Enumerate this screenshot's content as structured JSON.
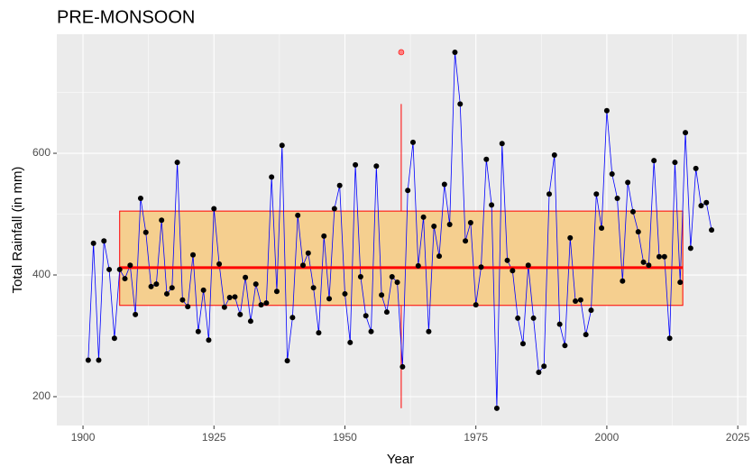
{
  "chart_data": {
    "type": "line",
    "title": "PRE-MONSOON",
    "x_label": "Year",
    "y_label": "Total Rainfall (in mm)",
    "x": [
      1901,
      1902,
      1903,
      1904,
      1905,
      1906,
      1907,
      1908,
      1909,
      1910,
      1911,
      1912,
      1913,
      1914,
      1915,
      1916,
      1917,
      1918,
      1919,
      1920,
      1921,
      1922,
      1923,
      1924,
      1925,
      1926,
      1927,
      1928,
      1929,
      1930,
      1931,
      1932,
      1933,
      1934,
      1935,
      1936,
      1937,
      1938,
      1939,
      1940,
      1941,
      1942,
      1943,
      1944,
      1945,
      1946,
      1947,
      1948,
      1949,
      1950,
      1951,
      1952,
      1953,
      1954,
      1955,
      1956,
      1957,
      1958,
      1959,
      1960,
      1961,
      1962,
      1963,
      1964,
      1965,
      1966,
      1967,
      1968,
      1969,
      1970,
      1971,
      1972,
      1973,
      1974,
      1975,
      1976,
      1977,
      1978,
      1979,
      1980,
      1981,
      1982,
      1983,
      1984,
      1985,
      1986,
      1987,
      1988,
      1989,
      1990,
      1991,
      1992,
      1993,
      1994,
      1995,
      1996,
      1997,
      1998,
      1999,
      2000,
      2001,
      2002,
      2003,
      2004,
      2005,
      2006,
      2007,
      2008,
      2009,
      2010,
      2011,
      2012,
      2013,
      2014,
      2015,
      2016,
      2017,
      2018,
      2019,
      2020
    ],
    "values": [
      260,
      452,
      260,
      456,
      409,
      296,
      409,
      394,
      416,
      335,
      526,
      470,
      381,
      385,
      490,
      369,
      379,
      585,
      359,
      348,
      433,
      307,
      375,
      293,
      509,
      418,
      347,
      363,
      364,
      335,
      396,
      324,
      385,
      351,
      354,
      561,
      373,
      613,
      259,
      330,
      498,
      416,
      436,
      379,
      305,
      464,
      361,
      509,
      547,
      369,
      289,
      581,
      397,
      333,
      307,
      579,
      367,
      339,
      397,
      388,
      249,
      539,
      618,
      415,
      495,
      307,
      480,
      431,
      549,
      483,
      766,
      681,
      456,
      486,
      351,
      413,
      590,
      515,
      181,
      616,
      424,
      407,
      329,
      287,
      416,
      329,
      240,
      250,
      533,
      597,
      319,
      284,
      461,
      357,
      359,
      302,
      342,
      533,
      477,
      670,
      566,
      526,
      390,
      552,
      504,
      471,
      421,
      416,
      588,
      430,
      430,
      296,
      585,
      388,
      634,
      444,
      575,
      514,
      519,
      474
    ],
    "line_color": "#0000ff",
    "point_color": "#000000",
    "box": {
      "x_range": [
        1907,
        2014.5
      ],
      "lower": 181,
      "q1": 350,
      "median": 412,
      "q3": 505,
      "upper": 681,
      "outliers": [
        766
      ],
      "fill": "#f5cf8f",
      "color": "#ff0000",
      "outlier_fill": "#ff8080"
    },
    "xlim": [
      1895,
      2026.7
    ],
    "ylim": [
      152.6,
      795.6
    ],
    "xticks": [
      1900,
      1925,
      1950,
      1975,
      2000,
      2025
    ],
    "yticks": [
      200,
      400,
      600
    ],
    "minor_xticks": [
      1912.5,
      1937.5,
      1962.5,
      1987.5,
      2012.5
    ],
    "minor_yticks": [
      300,
      500,
      700
    ],
    "grid": true
  }
}
